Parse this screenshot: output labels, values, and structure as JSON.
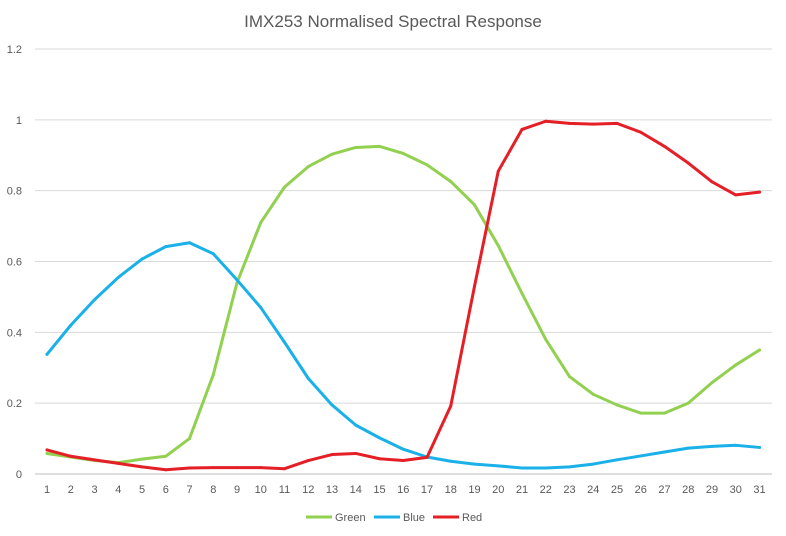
{
  "chart_data": {
    "type": "line",
    "title": "IMX253 Normalised Spectral Response",
    "xlabel": "",
    "ylabel": "",
    "ylim": [
      0,
      1.2
    ],
    "y_ticks": [
      "0",
      "0.2",
      "0.4",
      "0.6",
      "0.8",
      "1",
      "1.2"
    ],
    "grid": true,
    "legend_position": "bottom",
    "x": [
      "1",
      "2",
      "3",
      "4",
      "5",
      "6",
      "7",
      "8",
      "9",
      "10",
      "11",
      "12",
      "13",
      "14",
      "15",
      "16",
      "17",
      "18",
      "19",
      "20",
      "21",
      "22",
      "23",
      "24",
      "25",
      "26",
      "27",
      "28",
      "29",
      "30",
      "31"
    ],
    "series": [
      {
        "name": "Green",
        "color": "#92d050",
        "values": [
          0.058,
          0.048,
          0.038,
          0.032,
          0.042,
          0.05,
          0.1,
          0.28,
          0.54,
          0.71,
          0.81,
          0.868,
          0.903,
          0.922,
          0.925,
          0.905,
          0.873,
          0.826,
          0.76,
          0.645,
          0.51,
          0.38,
          0.275,
          0.225,
          0.195,
          0.172,
          0.172,
          0.2,
          0.258,
          0.308,
          0.35
        ]
      },
      {
        "name": "Blue",
        "color": "#1ab0e8",
        "values": [
          0.338,
          0.42,
          0.492,
          0.555,
          0.607,
          0.642,
          0.653,
          0.622,
          0.548,
          0.47,
          0.372,
          0.27,
          0.195,
          0.138,
          0.102,
          0.07,
          0.048,
          0.036,
          0.028,
          0.023,
          0.017,
          0.017,
          0.02,
          0.028,
          0.04,
          0.051,
          0.062,
          0.073,
          0.078,
          0.081,
          0.075
        ]
      },
      {
        "name": "Red",
        "color": "#e41f26",
        "values": [
          0.068,
          0.05,
          0.04,
          0.03,
          0.02,
          0.012,
          0.017,
          0.018,
          0.018,
          0.018,
          0.015,
          0.038,
          0.055,
          0.058,
          0.043,
          0.038,
          0.047,
          0.192,
          0.53,
          0.855,
          0.973,
          0.996,
          0.99,
          0.988,
          0.99,
          0.965,
          0.925,
          0.878,
          0.825,
          0.788,
          0.796
        ]
      }
    ]
  }
}
